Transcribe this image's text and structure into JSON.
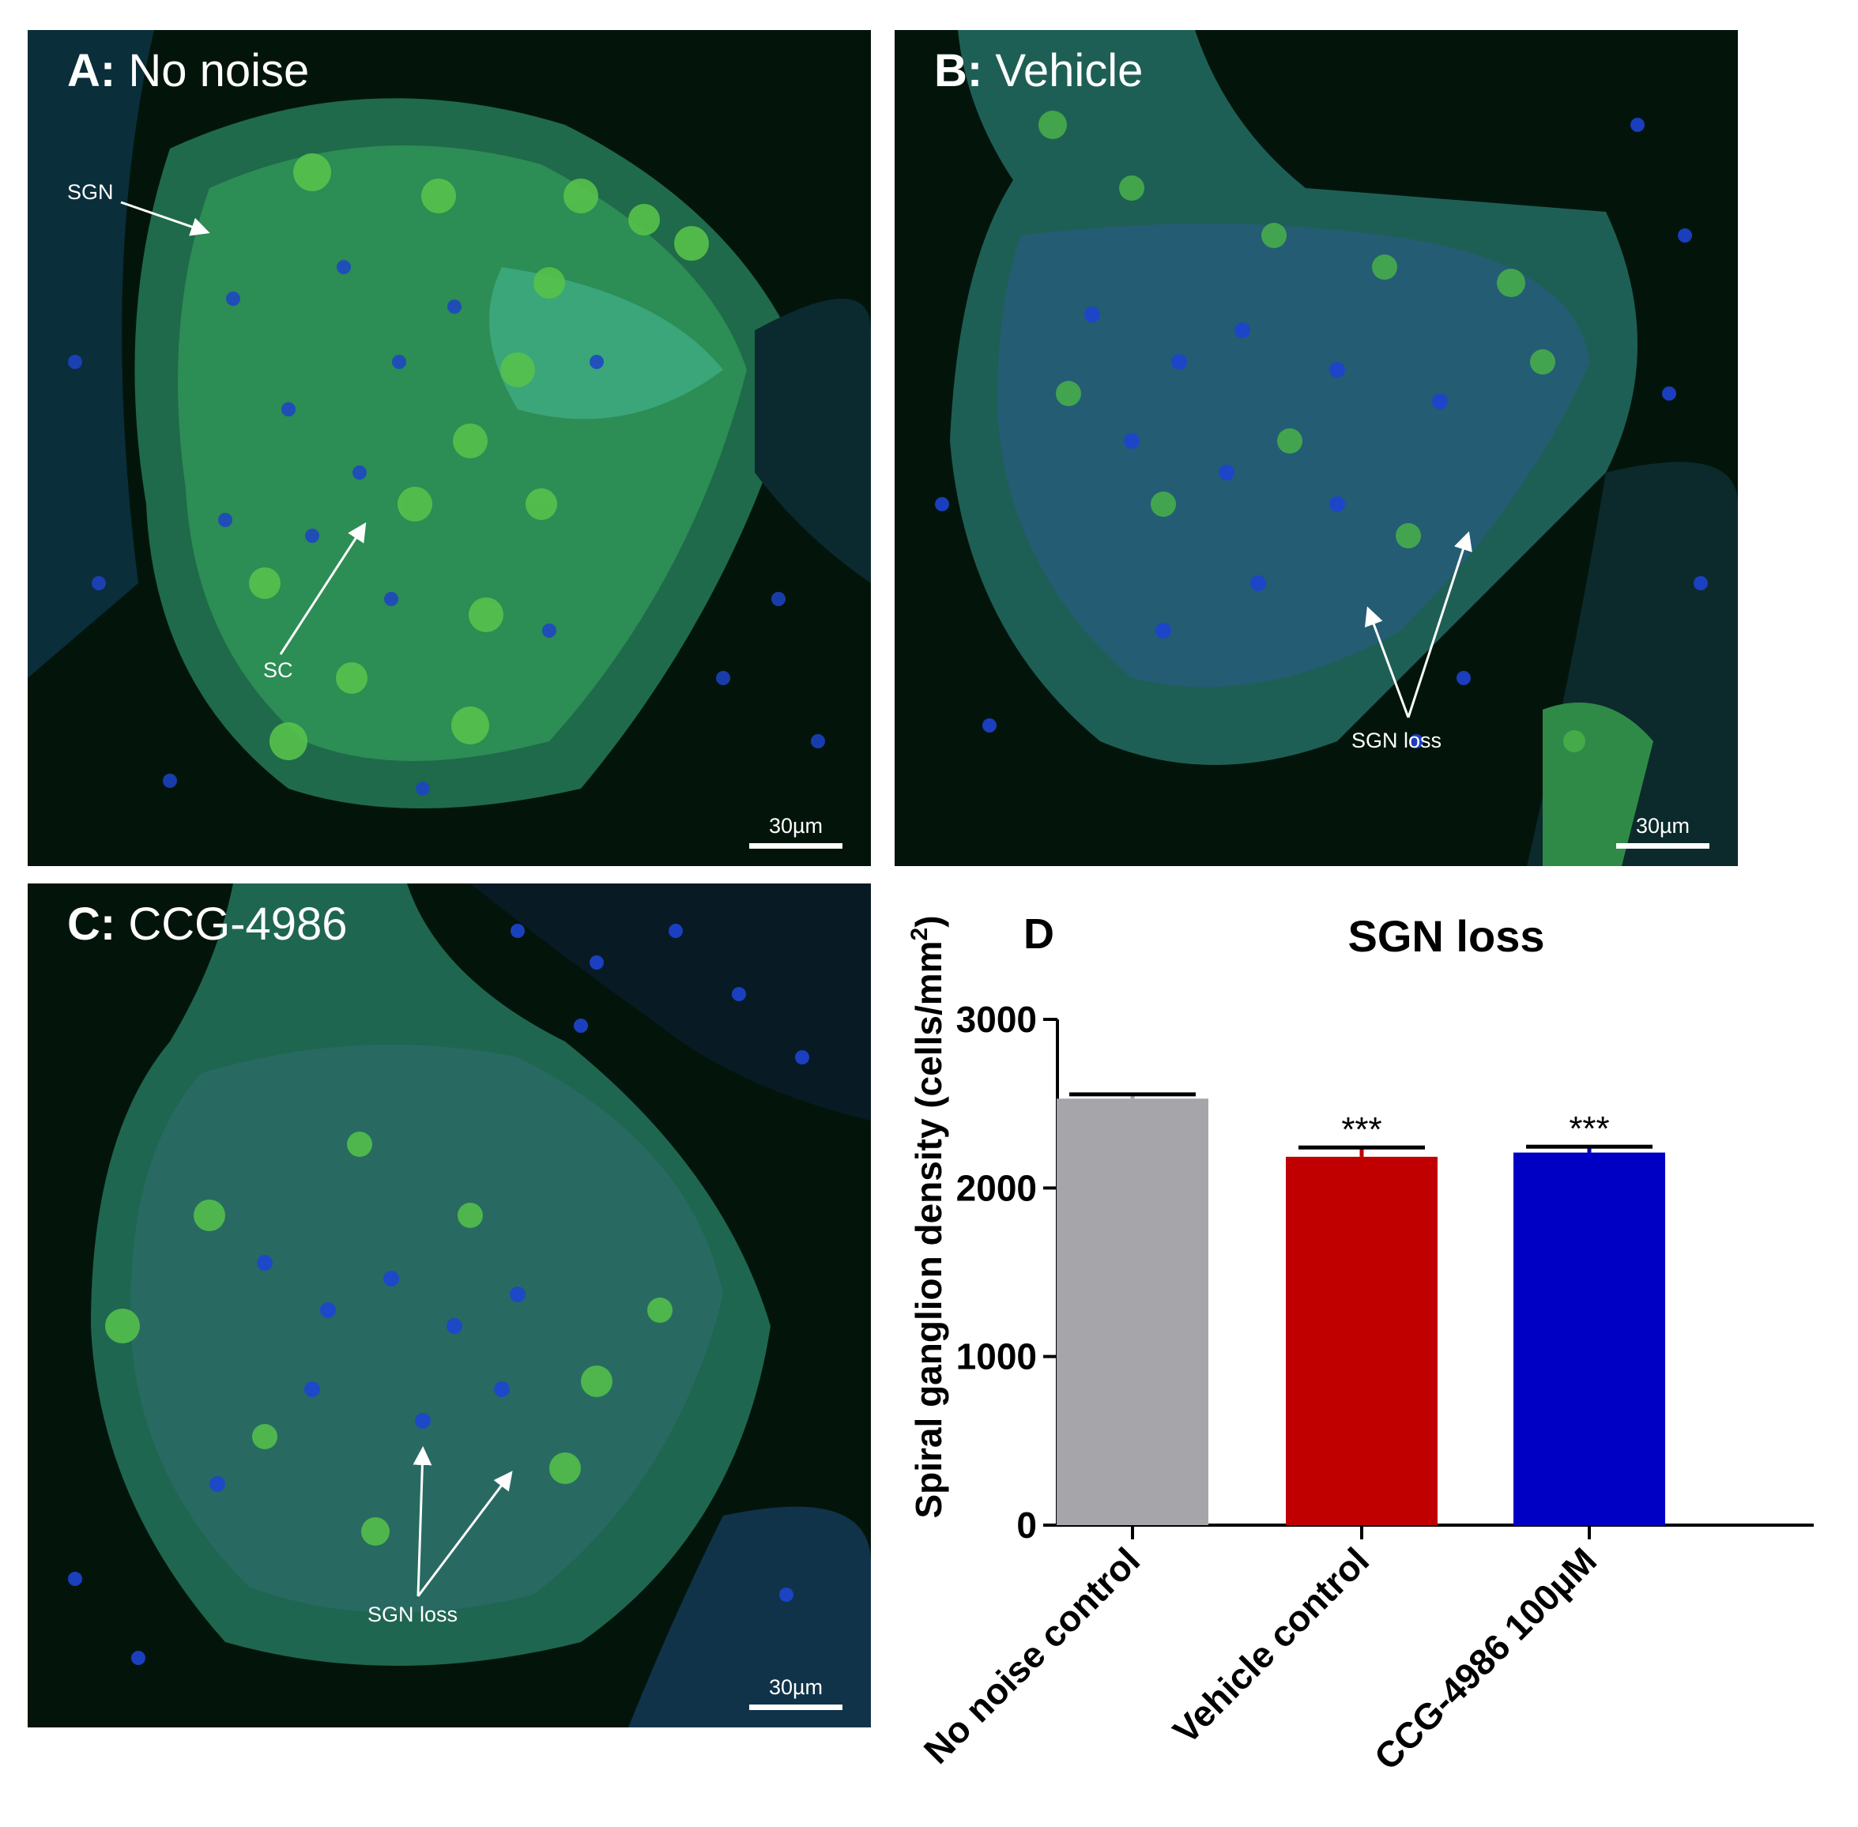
{
  "panels": [
    {
      "id": "A",
      "letter": "A:",
      "title": "No noise",
      "annotations": [
        "SGN",
        "SC"
      ],
      "scale_bar": "30µm"
    },
    {
      "id": "B",
      "letter": "B:",
      "title": "Vehicle",
      "annotations": [
        "SGN loss"
      ],
      "scale_bar": "30µm"
    },
    {
      "id": "C",
      "letter": "C:",
      "title": "CCG-4986",
      "annotations": [
        "SGN loss"
      ],
      "scale_bar": "30µm"
    }
  ],
  "chart_data": {
    "type": "bar",
    "panel_letter": "D",
    "title": "SGN loss",
    "ylabel_main": "Spiral ganglion density (cells/mm",
    "ylabel_sup": "2",
    "ylabel_end": ")",
    "categories": [
      "No noise control",
      "Vehicle control",
      "CCG-4986 100µM"
    ],
    "values": [
      2530,
      2185,
      2210
    ],
    "errors": [
      25,
      55,
      35
    ],
    "significance": [
      "",
      "***",
      "***"
    ],
    "colors": [
      "#a5a5aa",
      "#c00000",
      "#0000c4"
    ],
    "ylim": [
      0,
      3000
    ],
    "yticks": [
      0,
      1000,
      2000,
      3000
    ]
  }
}
